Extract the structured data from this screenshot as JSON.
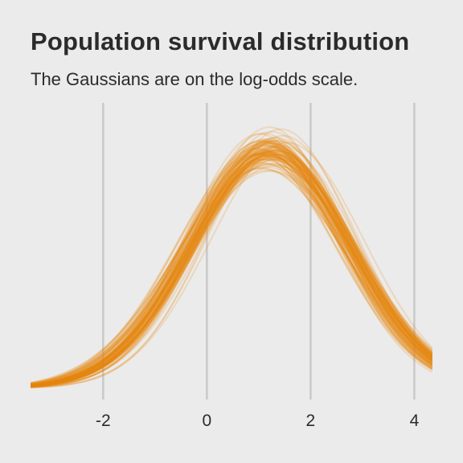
{
  "title": "Population survival distribution",
  "subtitle": "The Gaussians are on the log-odds scale.",
  "chart_data": {
    "type": "line",
    "title": "Population survival distribution",
    "subtitle": "The Gaussians are on the log-odds scale.",
    "xlabel": "",
    "ylabel": "",
    "xlim": [
      -3.4,
      4.35
    ],
    "ylim": [
      0,
      0.3
    ],
    "x_ticks": [
      -2,
      0,
      2,
      4
    ],
    "x_tick_labels": [
      "-2",
      "0",
      "2",
      "4"
    ],
    "y_axis_visible": false,
    "grid": "vertical major only",
    "legend": "none",
    "line_color": "#e8870e",
    "line_alpha": 0.2,
    "n_curves": 100,
    "curve_family": "normal density N(mu, sigma)",
    "mu_range": [
      0.75,
      1.65
    ],
    "sigma_range": [
      1.33,
      1.72
    ],
    "peak_density_range": [
      0.23,
      0.3
    ]
  }
}
